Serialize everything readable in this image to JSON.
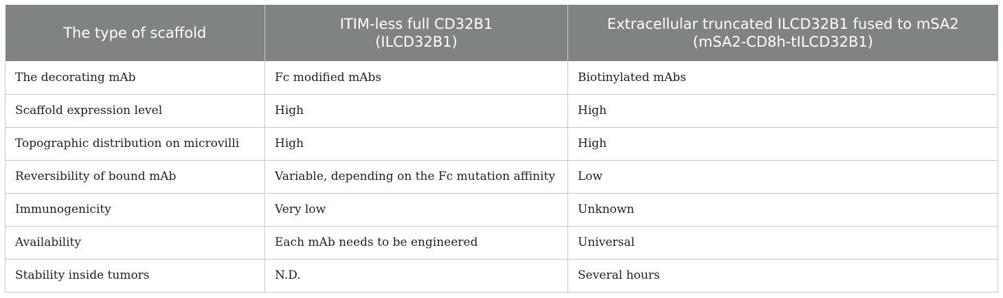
{
  "table": {
    "headers": [
      {
        "lines": [
          "The type of scaffold"
        ]
      },
      {
        "lines": [
          "ITIM-less full CD32B1",
          "(ILCD32B1)"
        ]
      },
      {
        "lines": [
          "Extracellular truncated ILCD32B1 fused to mSA2",
          "(mSA2-CD8h-tILCD32B1)"
        ]
      }
    ],
    "rows": [
      [
        "The decorating mAb",
        "Fc modified mAbs",
        "Biotinylated mAbs"
      ],
      [
        "Scaffold expression level",
        "High",
        "High"
      ],
      [
        "Topographic distribution on microvilli",
        "High",
        "High"
      ],
      [
        "Reversibility of bound mAb",
        "Variable, depending on the Fc mutation affinity",
        "Low"
      ],
      [
        "Immunogenicity",
        "Very low",
        "Unknown"
      ],
      [
        "Availability",
        "Each mAb needs to be engineered",
        "Universal"
      ],
      [
        "Stability inside tumors",
        "N.D.",
        "Several hours"
      ]
    ],
    "colors": {
      "header_background": "#7f8480",
      "header_text": "#ffffff",
      "border": "#c9c9c9"
    }
  }
}
